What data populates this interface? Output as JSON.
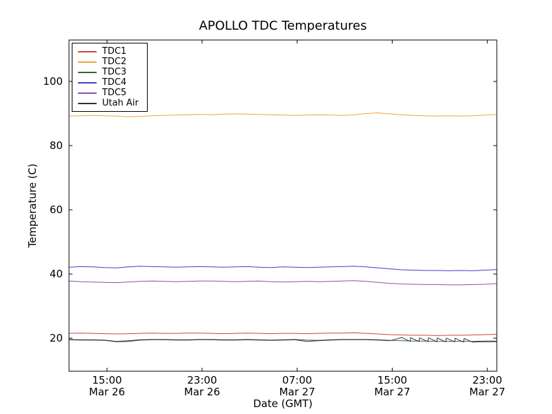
{
  "chart_data": {
    "type": "line",
    "title": "APOLLO TDC Temperatures",
    "xlabel": "Date (GMT)",
    "ylabel": "Temperature (C)",
    "grid": false,
    "legend_position": "upper left",
    "xlim": [
      0,
      36
    ],
    "ylim": [
      9.7,
      112.9
    ],
    "y_ticks": [
      20,
      40,
      60,
      80,
      100
    ],
    "x_ticks": [
      {
        "pos": 3.2,
        "time": "15:00",
        "date": "Mar 26"
      },
      {
        "pos": 11.2,
        "time": "23:00",
        "date": "Mar 26"
      },
      {
        "pos": 19.2,
        "time": "07:00",
        "date": "Mar 27"
      },
      {
        "pos": 27.2,
        "time": "15:00",
        "date": "Mar 27"
      },
      {
        "pos": 35.2,
        "time": "23:00",
        "date": "Mar 27"
      }
    ],
    "x": [
      0,
      1,
      2,
      3,
      4,
      5,
      6,
      7,
      8,
      9,
      10,
      11,
      12,
      13,
      14,
      15,
      16,
      17,
      18,
      19,
      20,
      21,
      22,
      23,
      24,
      25,
      26,
      27,
      28,
      29,
      30,
      31,
      32,
      33,
      34,
      35,
      36
    ],
    "series": [
      {
        "name": "TDC1",
        "color": "#cc4444",
        "values": [
          21.5,
          21.6,
          21.5,
          21.4,
          21.3,
          21.4,
          21.5,
          21.6,
          21.5,
          21.5,
          21.6,
          21.6,
          21.5,
          21.4,
          21.5,
          21.6,
          21.5,
          21.4,
          21.5,
          21.5,
          21.4,
          21.5,
          21.6,
          21.6,
          21.7,
          21.5,
          21.3,
          21.1,
          21.0,
          20.9,
          20.9,
          20.8,
          20.9,
          20.9,
          21.0,
          21.1,
          21.2
        ]
      },
      {
        "name": "TDC2",
        "color": "#eda33b",
        "values": [
          89.2,
          89.3,
          89.4,
          89.3,
          89.2,
          89.0,
          89.1,
          89.3,
          89.4,
          89.5,
          89.6,
          89.7,
          89.6,
          89.8,
          89.9,
          89.8,
          89.7,
          89.6,
          89.5,
          89.4,
          89.5,
          89.6,
          89.5,
          89.4,
          89.6,
          90.0,
          90.2,
          89.9,
          89.6,
          89.4,
          89.3,
          89.2,
          89.3,
          89.2,
          89.3,
          89.5,
          89.7
        ]
      },
      {
        "name": "TDC3",
        "color": "#336633",
        "values": [
          19.6,
          19.5,
          19.5,
          19.4,
          19.0,
          19.2,
          19.5,
          19.6,
          19.6,
          19.5,
          19.5,
          19.6,
          19.6,
          19.5,
          19.5,
          19.6,
          19.5,
          19.4,
          19.5,
          19.6,
          19.4,
          19.3,
          19.5,
          19.6,
          19.6,
          19.6,
          19.5,
          19.3,
          19.2,
          19.1,
          19.1,
          19.0,
          19.0,
          19.0,
          19.0,
          19.1,
          19.1
        ]
      },
      {
        "name": "TDC4",
        "color": "#4040cc",
        "values": [
          42.1,
          42.3,
          42.2,
          42.0,
          41.9,
          42.2,
          42.4,
          42.3,
          42.2,
          42.1,
          42.2,
          42.3,
          42.2,
          42.1,
          42.2,
          42.3,
          42.1,
          42.0,
          42.2,
          42.1,
          42.0,
          42.1,
          42.2,
          42.3,
          42.4,
          42.2,
          41.9,
          41.6,
          41.3,
          41.2,
          41.1,
          41.1,
          41.0,
          41.1,
          41.0,
          41.2,
          41.4
        ]
      },
      {
        "name": "TDC5",
        "color": "#8f4f9f",
        "values": [
          37.8,
          37.6,
          37.5,
          37.4,
          37.3,
          37.5,
          37.7,
          37.8,
          37.7,
          37.6,
          37.7,
          37.8,
          37.8,
          37.7,
          37.6,
          37.7,
          37.8,
          37.6,
          37.5,
          37.6,
          37.7,
          37.6,
          37.7,
          37.8,
          37.9,
          37.7,
          37.4,
          37.1,
          36.9,
          36.8,
          36.7,
          36.7,
          36.6,
          36.6,
          36.7,
          36.8,
          37.0
        ]
      },
      {
        "name": "Utah Air",
        "color": "#303030",
        "x": [
          0,
          1,
          2,
          3,
          4,
          5,
          6,
          7,
          8,
          9,
          10,
          11,
          12,
          13,
          14,
          15,
          16,
          17,
          18,
          19,
          20,
          21,
          22,
          23,
          24,
          25,
          26,
          27,
          28.0,
          28.7,
          28.75,
          29.45,
          29.5,
          30.2,
          30.25,
          30.95,
          31.0,
          31.7,
          31.75,
          32.45,
          32.5,
          33.2,
          33.25,
          33.95,
          34.5,
          35.25,
          36
        ],
        "values": [
          19.5,
          19.4,
          19.4,
          19.3,
          18.9,
          19.0,
          19.4,
          19.5,
          19.5,
          19.4,
          19.4,
          19.5,
          19.5,
          19.4,
          19.4,
          19.5,
          19.4,
          19.3,
          19.4,
          19.5,
          19.0,
          19.2,
          19.4,
          19.5,
          19.5,
          19.5,
          19.4,
          19.2,
          20.2,
          19.0,
          20.15,
          18.95,
          20.1,
          18.9,
          20.1,
          18.9,
          20.05,
          18.85,
          20.0,
          18.85,
          19.95,
          18.8,
          19.9,
          18.8,
          18.85,
          18.9,
          18.9
        ]
      }
    ]
  }
}
